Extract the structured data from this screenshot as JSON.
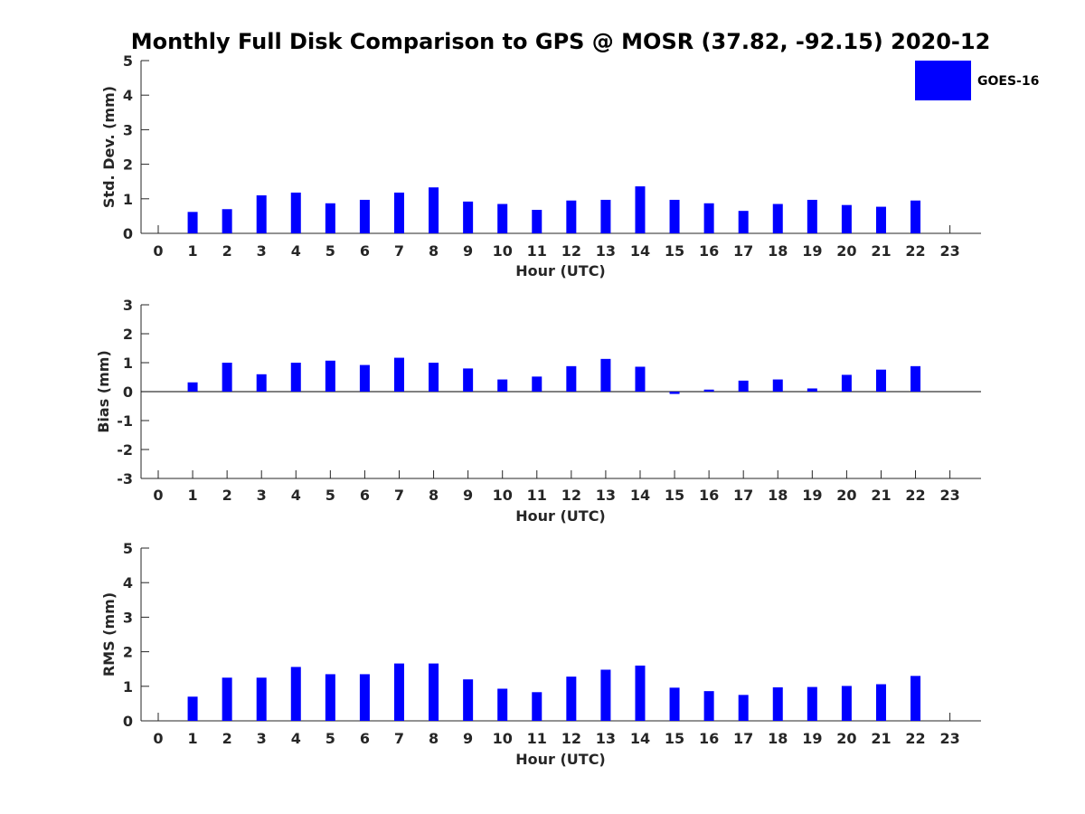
{
  "chart_data": {
    "type": "bar",
    "title": "Monthly Full Disk Comparison to GPS @ MOSR (37.82, -92.15) 2020-12",
    "legend": {
      "label": "GOES-16",
      "color": "#0000ff",
      "placement": "top-right"
    },
    "hours": [
      "0",
      "1",
      "2",
      "3",
      "4",
      "5",
      "6",
      "7",
      "8",
      "9",
      "10",
      "11",
      "12",
      "13",
      "14",
      "15",
      "16",
      "17",
      "18",
      "19",
      "20",
      "21",
      "22",
      "23"
    ],
    "panels": [
      {
        "name": "std-dev",
        "ylabel": "Std. Dev. (mm)",
        "xlabel": "Hour (UTC)",
        "ylim": [
          0,
          5
        ],
        "yticks": [
          "0",
          "1",
          "2",
          "3",
          "4",
          "5"
        ],
        "series": [
          {
            "name": "GOES-16",
            "values": [
              null,
              0.62,
              0.7,
              1.1,
              1.18,
              0.87,
              0.97,
              1.18,
              1.33,
              0.92,
              0.85,
              0.68,
              0.95,
              0.97,
              1.36,
              0.97,
              0.87,
              0.65,
              0.85,
              0.97,
              0.82,
              0.77,
              0.95,
              null
            ]
          }
        ]
      },
      {
        "name": "bias",
        "ylabel": "Bias (mm)",
        "xlabel": "Hour (UTC)",
        "ylim": [
          -3,
          3
        ],
        "yticks": [
          "-3",
          "-2",
          "-1",
          "0",
          "1",
          "2",
          "3"
        ],
        "series": [
          {
            "name": "GOES-16",
            "values": [
              null,
              0.32,
              1.0,
              0.6,
              1.0,
              1.07,
              0.92,
              1.17,
              1.0,
              0.8,
              0.42,
              0.52,
              0.88,
              1.13,
              0.86,
              -0.08,
              0.07,
              0.38,
              0.42,
              0.11,
              0.58,
              0.76,
              0.88,
              null
            ]
          }
        ]
      },
      {
        "name": "rms",
        "ylabel": "RMS (mm)",
        "xlabel": "Hour (UTC)",
        "ylim": [
          0,
          5
        ],
        "yticks": [
          "0",
          "1",
          "2",
          "3",
          "4",
          "5"
        ],
        "series": [
          {
            "name": "GOES-16",
            "values": [
              null,
              0.7,
              1.25,
              1.25,
              1.56,
              1.35,
              1.35,
              1.66,
              1.66,
              1.2,
              0.93,
              0.83,
              1.28,
              1.48,
              1.6,
              0.96,
              0.86,
              0.75,
              0.97,
              0.98,
              1.01,
              1.06,
              1.3,
              null
            ]
          }
        ]
      }
    ]
  }
}
